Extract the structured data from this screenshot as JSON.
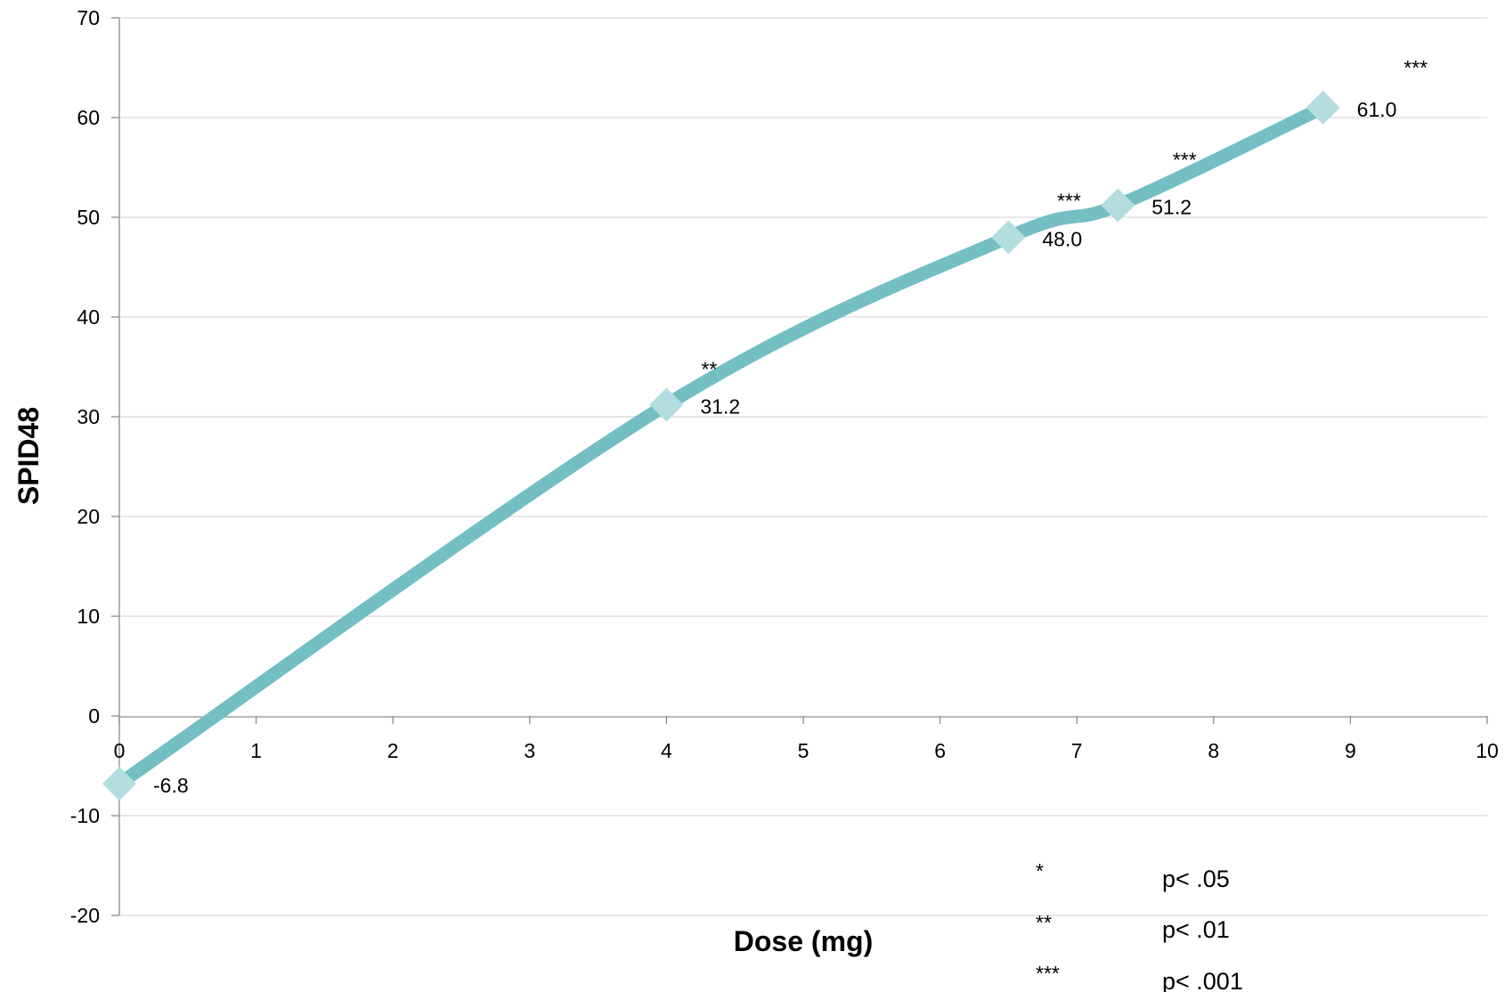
{
  "chart_data": {
    "type": "line",
    "title": "",
    "xlabel": "Dose (mg)",
    "ylabel": "SPID48",
    "xlim": [
      0,
      10
    ],
    "ylim": [
      -20,
      70
    ],
    "x_ticks": [
      0,
      1,
      2,
      3,
      4,
      5,
      6,
      7,
      8,
      9,
      10
    ],
    "y_ticks": [
      -20,
      -10,
      0,
      10,
      20,
      30,
      40,
      50,
      60,
      70
    ],
    "grid": "horizontal",
    "line_color": "#74bfc4",
    "marker_color": "#b4dde0",
    "marker": "diamond",
    "series": [
      {
        "x": [
          0,
          4,
          6.5,
          7.3,
          8.8
        ],
        "values": [
          -6.8,
          31.2,
          48.0,
          51.2,
          61.0
        ],
        "labels": [
          "-6.8",
          "31.2",
          "48.0",
          "51.2",
          "61.0"
        ],
        "significance": [
          "",
          "**",
          "***",
          "***",
          "***"
        ]
      }
    ],
    "significance_key": [
      {
        "symbol": "*",
        "text": "p< .05"
      },
      {
        "symbol": "**",
        "text": "p< .01"
      },
      {
        "symbol": "***",
        "text": "p< .001"
      }
    ]
  }
}
